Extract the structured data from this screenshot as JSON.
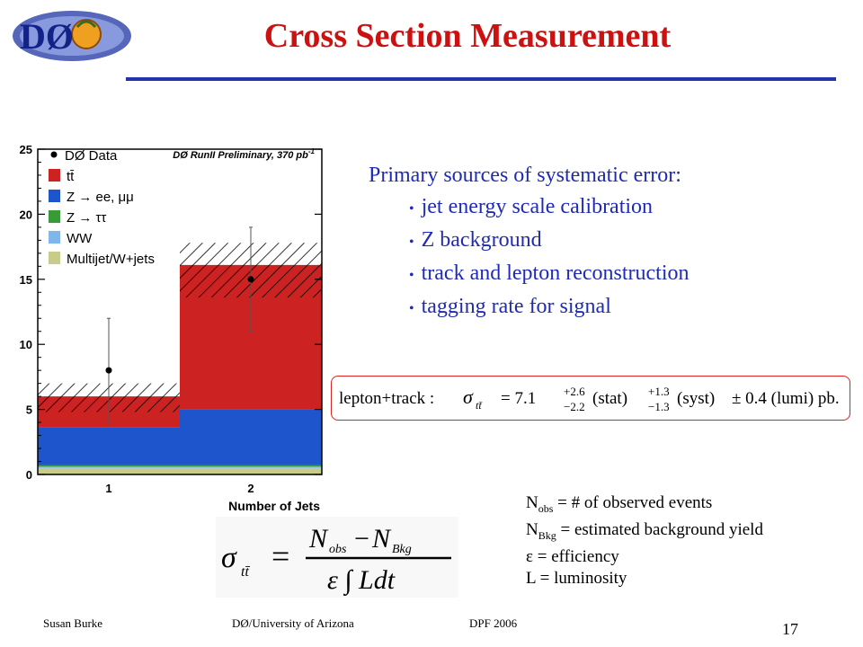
{
  "slide": {
    "title": "Cross Section Measurement",
    "logo_text": "DØ",
    "page_number": "17",
    "footer": {
      "author": "Susan Burke",
      "affiliation": "DØ/University  of Arizona",
      "event": "DPF  2006"
    }
  },
  "systematics": {
    "heading": "Primary sources of systematic error:",
    "items": [
      "jet energy scale calibration",
      "Z background",
      "track and lepton reconstruction",
      "tagging rate for signal"
    ]
  },
  "result": {
    "channel": "lepton+track :",
    "symbol": "σ",
    "subscript": "tt̄",
    "central": "= 7.1",
    "stat_up": "+2.6",
    "stat_down": "−2.2",
    "stat_label": "(stat)",
    "syst_up": "+1.3",
    "syst_down": "−1.3",
    "syst_label": "(syst)",
    "lumi": "± 0.4 (lumi) pb."
  },
  "definitions": [
    {
      "sym": "N",
      "sub": "obs",
      "text": " = # of observed events"
    },
    {
      "sym": "N",
      "sub": "Bkg",
      "text": " = estimated background yield"
    },
    {
      "sym": "ε",
      "sub": "",
      "text": " = efficiency"
    },
    {
      "sym": "L",
      "sub": "",
      "text": " = luminosity"
    }
  ],
  "formula": {
    "lhs_symbol": "σ",
    "lhs_sub": "tt̄",
    "num_a": "N",
    "num_a_sub": "obs",
    "minus": "−",
    "num_b": "N",
    "num_b_sub": "Bkg",
    "den": "ε ∫ Ldt"
  },
  "chart_data": {
    "type": "bar",
    "stacked": true,
    "annotation": "DØ RunII Preliminary, 370 pb",
    "annotation_sup": "-1",
    "xlabel": "Number of Jets",
    "ylabel": "",
    "categories": [
      "1",
      "2"
    ],
    "ylim": [
      0,
      25
    ],
    "yticks": [
      0,
      5,
      10,
      15,
      20,
      25
    ],
    "series": [
      {
        "name": "Multijet/W+jets",
        "color": "#c8cc8a",
        "values": [
          0.5,
          0.5
        ]
      },
      {
        "name": "WW",
        "color": "#7fb7ea",
        "values": [
          0.1,
          0.1
        ]
      },
      {
        "name": "Z → ττ",
        "color": "#3a9a3a",
        "values": [
          0.1,
          0.1
        ]
      },
      {
        "name": "Z → ee, μμ",
        "color": "#1f55cc",
        "values": [
          2.9,
          4.3
        ]
      },
      {
        "name": "tt̄",
        "color": "#cc2222",
        "values": [
          2.4,
          11.1
        ]
      }
    ],
    "band": {
      "low": [
        4.8,
        13.6
      ],
      "high": [
        7.0,
        17.8
      ]
    },
    "data": {
      "name": "DØ Data",
      "values": [
        8.0,
        15.0
      ],
      "err_low": [
        4.0,
        4.0
      ],
      "err_high": [
        4.0,
        4.0
      ]
    },
    "legend_position": "top-left",
    "grid": false
  }
}
